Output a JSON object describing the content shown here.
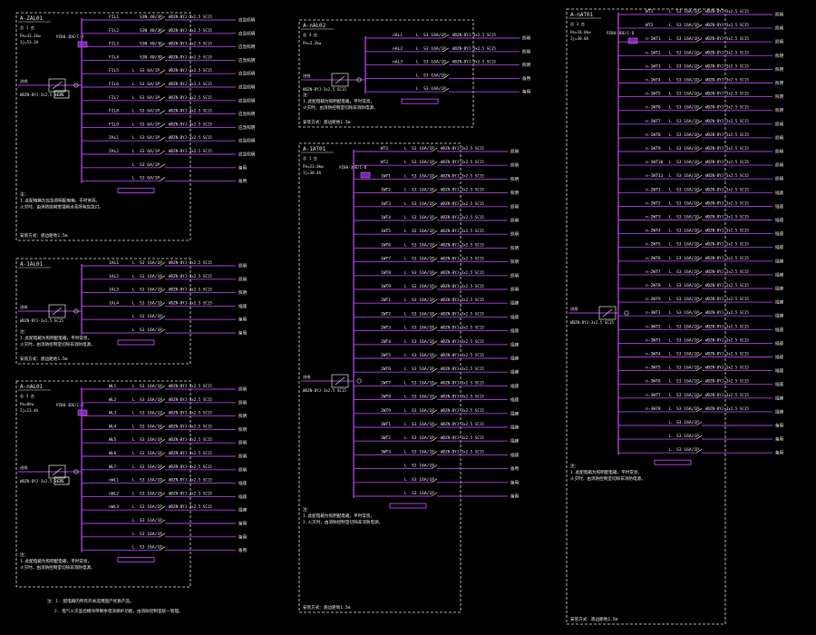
{
  "panels": [
    {
      "id": "p1",
      "title": "A-ZAL01",
      "sub": "总 1 台",
      "power": "Pe=32.2kw",
      "current": "Ij=53.3A",
      "meter": "PZ80-3DE/C-D",
      "has_eps": true,
      "circuits": [
        {
          "code": "FIL1",
          "pole": "",
          "brk": "S3N 40/3P",
          "load": "应急照明"
        },
        {
          "code": "FIL2",
          "pole": "",
          "brk": "S3N 40/3P",
          "load": "应急照明"
        },
        {
          "code": "FIL3",
          "pole": "",
          "brk": "S3N 40/3P",
          "load": "应急照明"
        },
        {
          "code": "FIL4",
          "pole": "",
          "brk": "S3N 40/3P",
          "load": "应急照明"
        },
        {
          "code": "FIL5",
          "pole": "L",
          "brk": "S3 6A/1P",
          "load": "应急照明"
        },
        {
          "code": "FIL6",
          "pole": "L",
          "brk": "S3 6A/1P",
          "load": "应急照明"
        },
        {
          "code": "FIL7",
          "pole": "L",
          "brk": "S3 6A/1P",
          "load": "应急照明"
        },
        {
          "code": "FIL8",
          "pole": "L",
          "brk": "S3 6A/1P",
          "load": "应急照明"
        },
        {
          "code": "FIL9",
          "pole": "L",
          "brk": "S3 6A/1P",
          "load": "应急照明"
        },
        {
          "code": "ZAL1",
          "pole": "L",
          "brk": "S3 6A/1P",
          "load": "应急照明"
        },
        {
          "code": "ZAL2",
          "pole": "L",
          "brk": "S3 6A/1P",
          "load": "应急照明"
        },
        {
          "code": "",
          "pole": "L",
          "brk": "S3 6A/1P",
          "load": "备用"
        },
        {
          "code": "",
          "pole": "L",
          "brk": "S3 6A/1P",
          "load": "备用"
        }
      ],
      "notes": [
        "注：",
        "1.此配电箱为应急照明配电箱，平时常亮，",
        "火灾时，由消防控制室强制点亮所有应急灯。"
      ],
      "footer": "安装方式：底边距地1.5m"
    },
    {
      "id": "p2",
      "title": "A-1AL01",
      "sub": "",
      "power": "",
      "current": "",
      "meter": "",
      "has_eps": false,
      "circuits": [
        {
          "code": "1AL1",
          "pole": "L",
          "brk": "S3 16A/1P",
          "load": "照明"
        },
        {
          "code": "1AL2",
          "pole": "L",
          "brk": "S3 16A/1P",
          "load": "照明"
        },
        {
          "code": "1AL3",
          "pole": "L",
          "brk": "S3 16A/1P",
          "load": "照明"
        },
        {
          "code": "1AL4",
          "pole": "L",
          "brk": "S3 16A/1P",
          "load": "插座"
        },
        {
          "code": "",
          "pole": "L",
          "brk": "S3 16A/1P",
          "load": "备用"
        },
        {
          "code": "",
          "pole": "L",
          "brk": "S3 16A/1P",
          "load": "备用"
        }
      ],
      "notes": [
        "注：",
        "1.此配电箱为照明配电箱，平时常亮，",
        "火灾时，由消防控制室切除非消防电源。"
      ],
      "footer": "安装方式：底边距地1.5m"
    },
    {
      "id": "p3",
      "title": "A-nAL01",
      "sub": "总 3 台",
      "power": "Pe=8kw",
      "current": "Ij=13.4A",
      "meter": "PZ80-3DE/C-D",
      "has_eps": true,
      "circuits": [
        {
          "code": "WL1",
          "pole": "L",
          "brk": "S3 16A/1P",
          "load": "照明"
        },
        {
          "code": "WL2",
          "pole": "L",
          "brk": "S3 16A/1P",
          "load": "照明"
        },
        {
          "code": "WL3",
          "pole": "L",
          "brk": "S3 16A/1P",
          "load": "照明"
        },
        {
          "code": "WL4",
          "pole": "L",
          "brk": "S3 16A/1P",
          "load": "照明"
        },
        {
          "code": "WL5",
          "pole": "L",
          "brk": "S3 16A/1P",
          "load": "照明"
        },
        {
          "code": "WL6",
          "pole": "L",
          "brk": "S3 16A/1P",
          "load": "照明"
        },
        {
          "code": "WL7",
          "pole": "L",
          "brk": "S3 16A/1P",
          "load": "照明"
        },
        {
          "code": "nWL1",
          "pole": "L",
          "brk": "S3 16A/1P",
          "load": "插座"
        },
        {
          "code": "nWL2",
          "pole": "L",
          "brk": "S3 16A/1P",
          "load": "插座"
        },
        {
          "code": "nWL3",
          "pole": "L",
          "brk": "S3 16A/1P",
          "load": "插座"
        },
        {
          "code": "",
          "pole": "L",
          "brk": "S3 16A/1P",
          "load": "备用"
        },
        {
          "code": "",
          "pole": "L",
          "brk": "S3 16A/1P",
          "load": "备用"
        },
        {
          "code": "",
          "pole": "L",
          "brk": "S3 16A/1P",
          "load": "备用"
        }
      ],
      "notes": [
        "注：",
        "1.此配电箱为照明配电箱，平时常亮，",
        "火灾时，由消防控制室切除非消防电源。"
      ],
      "footer": ""
    },
    {
      "id": "p4",
      "title": "A-nAL02",
      "sub": "总 4 台",
      "power": "Pe=3.2kw",
      "current": "",
      "meter": "",
      "has_eps": false,
      "circuits": [
        {
          "code": "nAL1",
          "pole": "L",
          "brk": "S3 16A/1P",
          "load": "照明"
        },
        {
          "code": "nAL2",
          "pole": "L",
          "brk": "S3 16A/1P",
          "load": "照明"
        },
        {
          "code": "nAL3",
          "pole": "L",
          "brk": "S3 16A/1P",
          "load": "照明"
        },
        {
          "code": "",
          "pole": "L",
          "brk": "S3 16A/1P",
          "load": "备用"
        },
        {
          "code": "",
          "pole": "L",
          "brk": "S3 16A/1P",
          "load": "备用"
        }
      ],
      "notes": [
        "注：",
        "1.此配电箱为照明配电箱，平时常亮，",
        "火灾时，由消防控制室切除非消防电源。"
      ],
      "footer": "安装方式：底边距地1.5m"
    },
    {
      "id": "p5",
      "title": "A-1AT01",
      "sub": "总 1 台",
      "power": "Pe=23.0kw",
      "current": "Ij=38.4A",
      "meter": "PZ80-3DE/C-D",
      "has_eps": false,
      "circuits": [
        {
          "code": "WT1",
          "pole": "L",
          "brk": "S3 16A/1P",
          "load": "照明"
        },
        {
          "code": "WT2",
          "pole": "L",
          "brk": "S3 16A/1P",
          "load": "照明"
        },
        {
          "code": "1WT1",
          "pole": "L",
          "brk": "S3 16A/1P",
          "load": "照明"
        },
        {
          "code": "1WT2",
          "pole": "L",
          "brk": "S3 16A/1P",
          "load": "照明"
        },
        {
          "code": "1WT3",
          "pole": "L",
          "brk": "S3 16A/1P",
          "load": "照明"
        },
        {
          "code": "1WT4",
          "pole": "L",
          "brk": "S3 16A/1P",
          "load": "照明"
        },
        {
          "code": "1WT5",
          "pole": "L",
          "brk": "S3 16A/1P",
          "load": "照明"
        },
        {
          "code": "1WT6",
          "pole": "L",
          "brk": "S3 16A/1P",
          "load": "照明"
        },
        {
          "code": "1WT7",
          "pole": "L",
          "brk": "S3 16A/1P",
          "load": "照明"
        },
        {
          "code": "1WT8",
          "pole": "L",
          "brk": "S3 16A/1P",
          "load": "照明"
        },
        {
          "code": "1WT9",
          "pole": "L",
          "brk": "S3 16A/1P",
          "load": "照明"
        },
        {
          "code": "2WT1",
          "pole": "L",
          "brk": "S3 16A/1P",
          "load": "插座"
        },
        {
          "code": "2WT2",
          "pole": "L",
          "brk": "S3 16A/1P",
          "load": "插座"
        },
        {
          "code": "2WT3",
          "pole": "L",
          "brk": "S3 16A/1P",
          "load": "插座"
        },
        {
          "code": "2WT4",
          "pole": "L",
          "brk": "S3 16A/1P",
          "load": "插座"
        },
        {
          "code": "2WT5",
          "pole": "L",
          "brk": "S3 16A/1P",
          "load": "插座"
        },
        {
          "code": "2WT6",
          "pole": "L",
          "brk": "S3 16A/1P",
          "load": "插座"
        },
        {
          "code": "2WT7",
          "pole": "L",
          "brk": "S3 16A/1P",
          "load": "插座"
        },
        {
          "code": "2WT8",
          "pole": "L",
          "brk": "S3 16A/1P",
          "load": "插座"
        },
        {
          "code": "2WT9",
          "pole": "L",
          "brk": "S3 16A/1P",
          "load": "插座"
        },
        {
          "code": "3WT1",
          "pole": "L",
          "brk": "S3 16A/1P",
          "load": "插座"
        },
        {
          "code": "3WT2",
          "pole": "L",
          "brk": "S3 16A/1P",
          "load": "插座"
        },
        {
          "code": "3WT3",
          "pole": "L",
          "brk": "S3 16A/1P",
          "load": "插座"
        },
        {
          "code": "",
          "pole": "L",
          "brk": "S3 16A/1P",
          "load": "备用"
        },
        {
          "code": "",
          "pole": "L",
          "brk": "S3 16A/1P",
          "load": "备用"
        },
        {
          "code": "",
          "pole": "L",
          "brk": "S3 16A/1P",
          "load": "备用"
        }
      ],
      "notes": [
        "注：",
        "1.此配电箱为照明配电箱，平时常亮，",
        "2.火灾时，由消防控制室切除非消防电源。"
      ],
      "footer": "安装方式：底边距地1.5m"
    },
    {
      "id": "p6",
      "title": "A-nAT01",
      "sub": "总 3 台",
      "power": "Pe=18.0kw",
      "current": "Ij=30.0A",
      "meter": "PZ80-3DE/C-D",
      "has_eps": false,
      "circuits": [
        {
          "code": "WT1",
          "pole": "L",
          "brk": "S3 16A/1P",
          "load": "照明"
        },
        {
          "code": "WT2",
          "pole": "L",
          "brk": "S3 16A/1P",
          "load": "照明"
        },
        {
          "code": "n-1WT1",
          "pole": "L",
          "brk": "S3 16A/1P",
          "load": "照明"
        },
        {
          "code": "n-1WT2",
          "pole": "L",
          "brk": "S3 16A/1P",
          "load": "照明"
        },
        {
          "code": "n-1WT3",
          "pole": "L",
          "brk": "S3 16A/1P",
          "load": "照明"
        },
        {
          "code": "n-1WT4",
          "pole": "L",
          "brk": "S3 16A/1P",
          "load": "照明"
        },
        {
          "code": "n-1WT5",
          "pole": "L",
          "brk": "S3 16A/1P",
          "load": "照明"
        },
        {
          "code": "n-1WT6",
          "pole": "L",
          "brk": "S3 16A/1P",
          "load": "照明"
        },
        {
          "code": "n-1WT7",
          "pole": "L",
          "brk": "S3 16A/1P",
          "load": "照明"
        },
        {
          "code": "n-1WT8",
          "pole": "L",
          "brk": "S3 16A/1P",
          "load": "照明"
        },
        {
          "code": "n-1WT9",
          "pole": "L",
          "brk": "S3 16A/1P",
          "load": "照明"
        },
        {
          "code": "n-1WT10",
          "pole": "L",
          "brk": "S3 16A/1P",
          "load": "照明"
        },
        {
          "code": "n-1WT11",
          "pole": "L",
          "brk": "S3 16A/1P",
          "load": "照明"
        },
        {
          "code": "n-2WT1",
          "pole": "L",
          "brk": "S3 16A/1P",
          "load": "插座"
        },
        {
          "code": "n-2WT2",
          "pole": "L",
          "brk": "S3 16A/1P",
          "load": "插座"
        },
        {
          "code": "n-2WT3",
          "pole": "L",
          "brk": "S3 16A/1P",
          "load": "插座"
        },
        {
          "code": "n-2WT4",
          "pole": "L",
          "brk": "S3 16A/1P",
          "load": "插座"
        },
        {
          "code": "n-2WT5",
          "pole": "L",
          "brk": "S3 16A/1P",
          "load": "插座"
        },
        {
          "code": "n-2WT6",
          "pole": "L",
          "brk": "S3 16A/1P",
          "load": "插座"
        },
        {
          "code": "n-2WT7",
          "pole": "L",
          "brk": "S3 16A/1P",
          "load": "插座"
        },
        {
          "code": "n-2WT8",
          "pole": "L",
          "brk": "S3 16A/1P",
          "load": "插座"
        },
        {
          "code": "n-2WT9",
          "pole": "L",
          "brk": "S3 16A/1P",
          "load": "插座"
        },
        {
          "code": "n-3WT1",
          "pole": "L",
          "brk": "S3 16A/1P",
          "load": "插座"
        },
        {
          "code": "n-3WT2",
          "pole": "L",
          "brk": "S3 16A/1P",
          "load": "插座"
        },
        {
          "code": "n-3WT3",
          "pole": "L",
          "brk": "S3 16A/1P",
          "load": "插座"
        },
        {
          "code": "n-3WT4",
          "pole": "L",
          "brk": "S3 16A/1P",
          "load": "插座"
        },
        {
          "code": "n-3WT5",
          "pole": "L",
          "brk": "S3 16A/1P",
          "load": "插座"
        },
        {
          "code": "n-3WT6",
          "pole": "L",
          "brk": "S3 16A/1P",
          "load": "插座"
        },
        {
          "code": "n-3WT7",
          "pole": "L",
          "brk": "S3 16A/1P",
          "load": "插座"
        },
        {
          "code": "n-3WT8",
          "pole": "L",
          "brk": "S3 16A/1P",
          "load": "插座"
        },
        {
          "code": "",
          "pole": "L",
          "brk": "S3 16A/1P",
          "load": "备用"
        },
        {
          "code": "",
          "pole": "L",
          "brk": "S3 16A/1P",
          "load": "备用"
        },
        {
          "code": "",
          "pole": "L",
          "brk": "S3 16A/1P",
          "load": "备用"
        }
      ],
      "notes": [
        "注：",
        "1.此配电箱为照明配电箱，平时常亮，",
        "火灾时，由消防控制室切除非消防电源。"
      ],
      "footer": "安装方式：底边距地1.5m"
    }
  ],
  "cable_spec": "WDZN-BYJ-3x2.5 SC15",
  "incoming_label": "进线",
  "eps_label": "EPS",
  "meter_short": "电能表",
  "general_notes": [
    "注：1. 配电箱内所有开关选用国产优质产品。",
    "2. 电气火灾监控模块带剩余电流保护功能，由消防控制室统一管理。"
  ],
  "colors": {
    "bus": "#b040e0",
    "frame": "#e8e8e8",
    "text": "#f0f0f0",
    "background": "#000000"
  }
}
